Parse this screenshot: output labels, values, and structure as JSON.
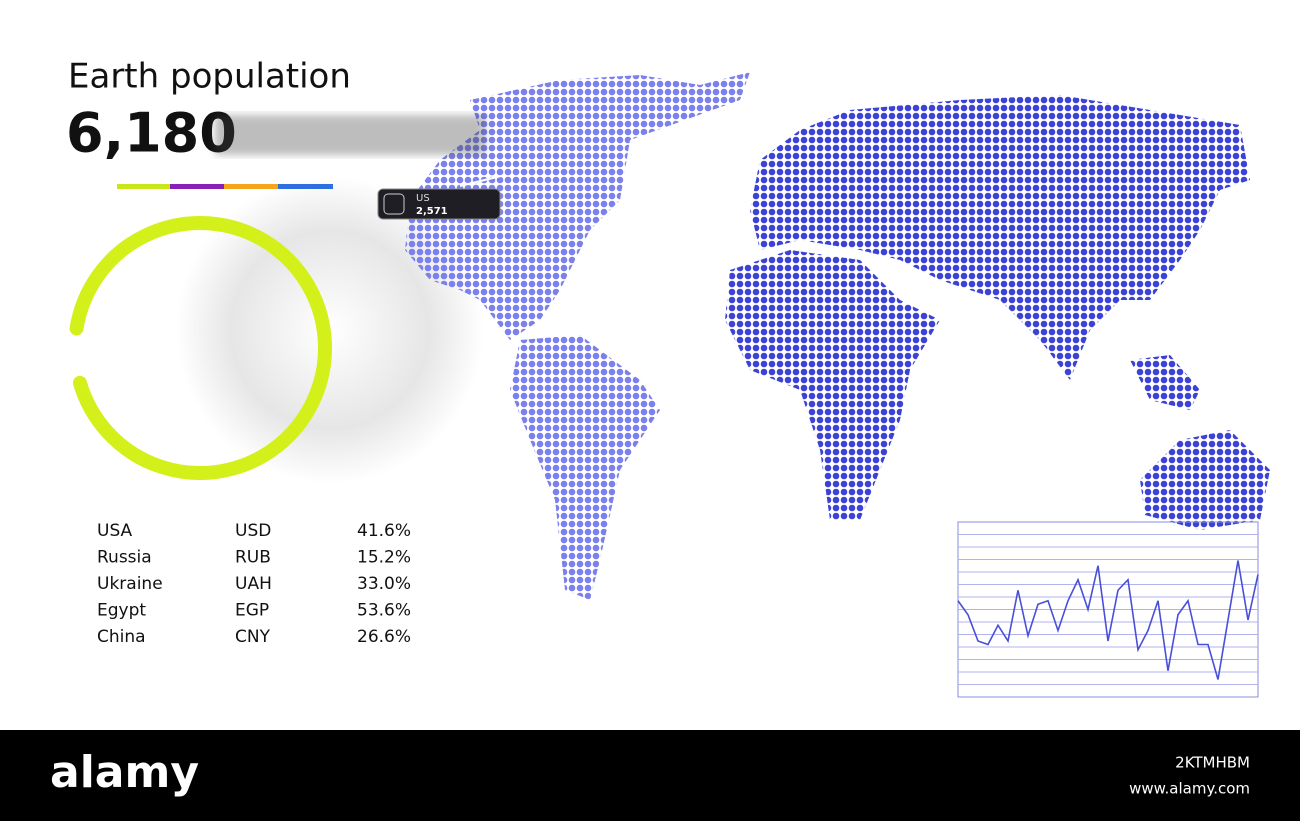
{
  "header": {
    "title": "Earth population",
    "value": "6,180"
  },
  "tooltip": {
    "label": "US",
    "value": "2,571"
  },
  "ring": {
    "value": 93,
    "lim": [
      0,
      100
    ],
    "color": "#d4f01a"
  },
  "table": {
    "rows": [
      [
        "USA",
        "USD",
        "41.6%"
      ],
      [
        "Russia",
        "RUB",
        "15.2%"
      ],
      [
        "Ukraine",
        "UAH",
        "33.0%"
      ],
      [
        "Egypt",
        "EGP",
        "53.6%"
      ],
      [
        "China",
        "CNY",
        "26.6%"
      ]
    ]
  },
  "sparkline": {
    "type": "line",
    "color": "#4a4fd8",
    "ylim": [
      0,
      100
    ],
    "values": [
      55,
      47,
      32,
      30,
      41,
      32,
      61,
      35,
      53,
      55,
      38,
      55,
      67,
      50,
      75,
      32,
      61,
      67,
      27,
      38,
      55,
      15,
      47,
      55,
      30,
      30,
      10,
      44,
      78,
      44,
      70
    ]
  },
  "watermark": {
    "logo": "alamy",
    "id": "2KTMHBM",
    "url": "www.alamy.com"
  }
}
